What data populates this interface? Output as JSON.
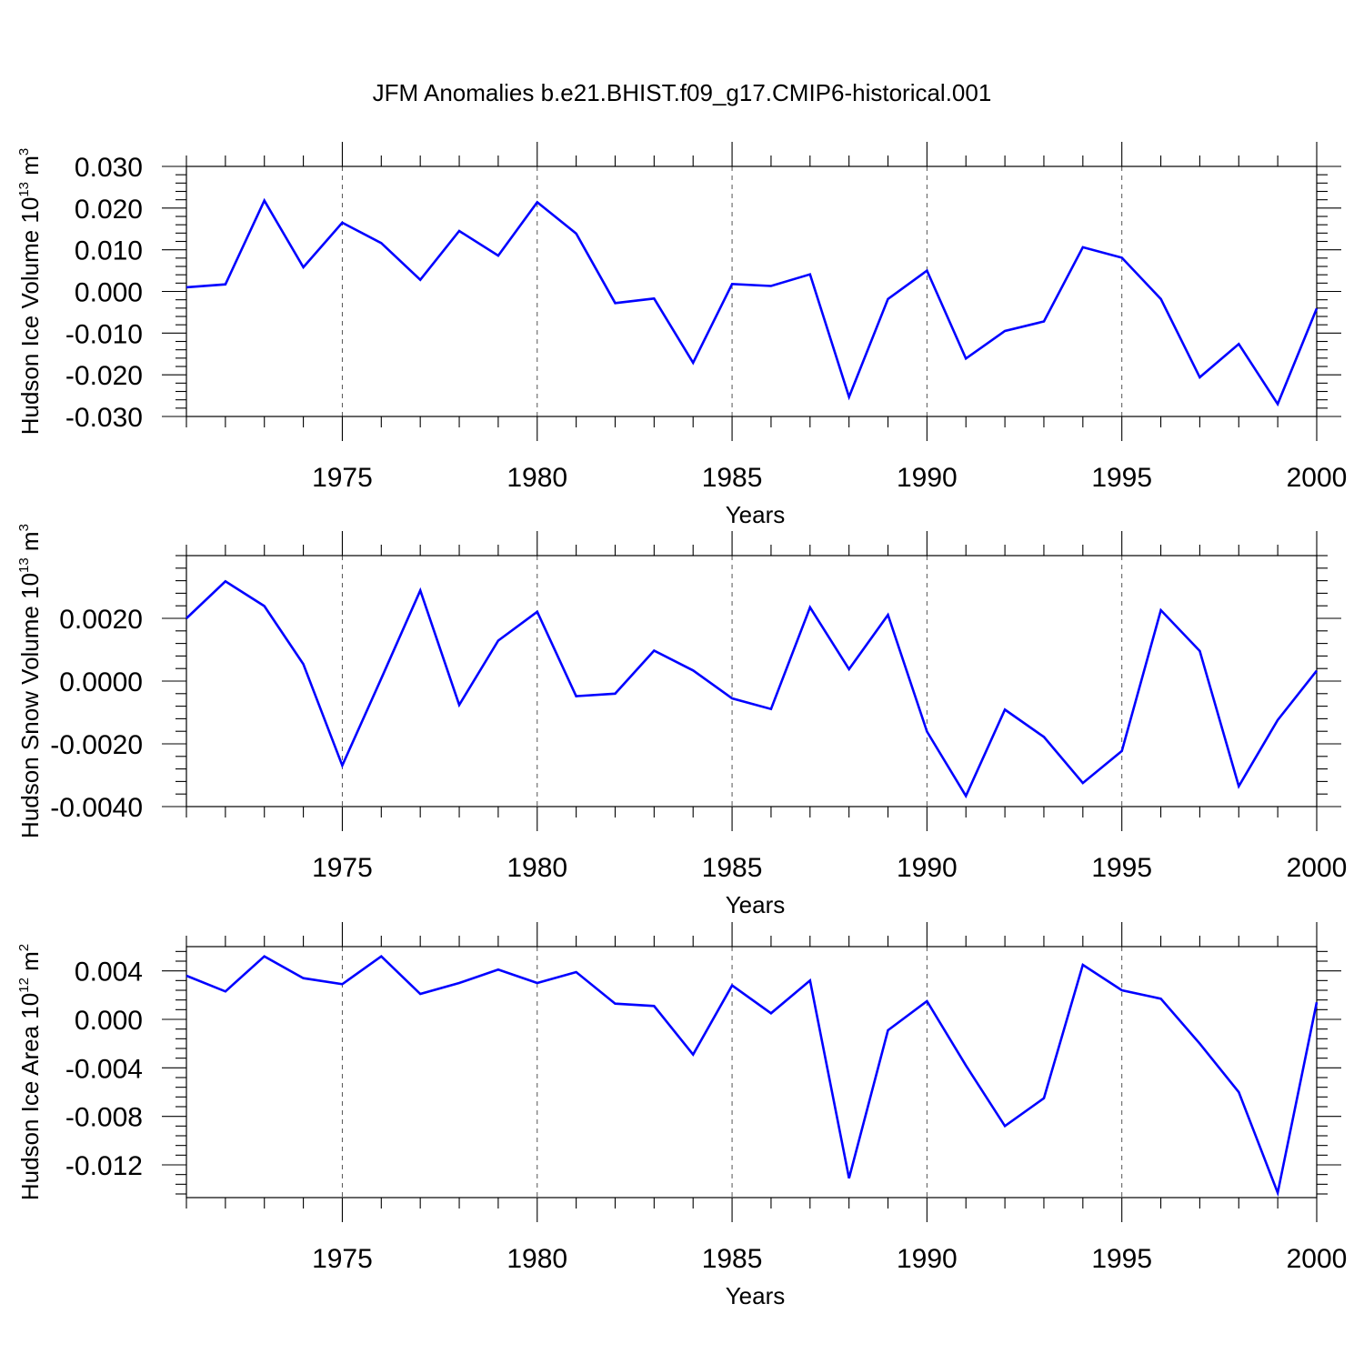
{
  "figure_title": "JFM Anomalies b.e21.BHIST.f09_g17.CMIP6-historical.001",
  "colors": {
    "series": "#0000ff",
    "axis": "#000000",
    "grid": "#555555"
  },
  "chart_data": [
    {
      "type": "line",
      "ylabel": {
        "text": "Hudson Ice Volume 10",
        "sup": "13",
        "unit": " m",
        "unit_sup": "3"
      },
      "xlabel": "Years",
      "xlim": [
        1971,
        2000
      ],
      "ylim": [
        -0.03,
        0.03
      ],
      "yticks": [
        -0.03,
        -0.02,
        -0.01,
        0.0,
        0.01,
        0.02,
        0.03
      ],
      "ytick_labels": [
        "-0.030",
        "-0.020",
        "-0.010",
        "0.000",
        "0.010",
        "0.020",
        "0.030"
      ],
      "yminor_step": 0.002,
      "xticks": [
        1975,
        1980,
        1985,
        1990,
        1995,
        2000
      ],
      "xtick_labels": [
        "1975",
        "1980",
        "1985",
        "1990",
        "1995",
        "2000"
      ],
      "x": [
        1971,
        1972,
        1973,
        1974,
        1975,
        1976,
        1977,
        1978,
        1979,
        1980,
        1981,
        1982,
        1983,
        1984,
        1985,
        1986,
        1987,
        1988,
        1989,
        1990,
        1991,
        1992,
        1993,
        1994,
        1995,
        1996,
        1997,
        1998,
        1999,
        2000
      ],
      "series": [
        {
          "values": [
            0.001,
            0.0017,
            0.0218,
            0.0058,
            0.0165,
            0.0116,
            0.0028,
            0.0145,
            0.0086,
            0.0214,
            0.0139,
            -0.0028,
            -0.0017,
            -0.0171,
            0.0018,
            0.0013,
            0.0041,
            -0.0253,
            -0.0018,
            0.005,
            -0.0161,
            -0.0095,
            -0.0072,
            0.0106,
            0.0081,
            -0.0018,
            -0.0206,
            -0.0126,
            -0.027,
            -0.0041
          ]
        }
      ]
    },
    {
      "type": "line",
      "ylabel": {
        "text": "Hudson Snow Volume 10",
        "sup": "13",
        "unit": " m",
        "unit_sup": "3"
      },
      "xlabel": "Years",
      "xlim": [
        1971,
        2000
      ],
      "ylim": [
        -0.004,
        0.004
      ],
      "yticks": [
        -0.004,
        -0.002,
        0.0,
        0.002
      ],
      "ytick_labels": [
        "-0.0040",
        "-0.0020",
        "0.0000",
        "0.0020"
      ],
      "yminor_step": 0.0004,
      "xticks": [
        1975,
        1980,
        1985,
        1990,
        1995,
        2000
      ],
      "xtick_labels": [
        "1975",
        "1980",
        "1985",
        "1990",
        "1995",
        "2000"
      ],
      "x": [
        1971,
        1972,
        1973,
        1974,
        1975,
        1976,
        1977,
        1978,
        1979,
        1980,
        1981,
        1982,
        1983,
        1984,
        1985,
        1986,
        1987,
        1988,
        1989,
        1990,
        1991,
        1992,
        1993,
        1994,
        1995,
        1996,
        1997,
        1998,
        1999,
        2000
      ],
      "series": [
        {
          "values": [
            0.002,
            0.00318,
            0.00239,
            0.00054,
            -0.00269,
            8e-05,
            0.00289,
            -0.00076,
            0.00129,
            0.00221,
            -0.00048,
            -0.0004,
            0.00097,
            0.00034,
            -0.00055,
            -0.00089,
            0.00235,
            0.00038,
            0.00211,
            -0.00161,
            -0.00366,
            -0.00091,
            -0.00178,
            -0.00325,
            -0.00223,
            0.00226,
            0.00096,
            -0.00335,
            -0.00124,
            0.00033
          ]
        }
      ]
    },
    {
      "type": "line",
      "ylabel": {
        "text": "Hudson Ice Area 10",
        "sup": "12",
        "unit": " m",
        "unit_sup": "2"
      },
      "xlabel": "Years",
      "xlim": [
        1971,
        2000
      ],
      "ylim": [
        -0.0147,
        0.006
      ],
      "yticks": [
        -0.012,
        -0.008,
        -0.004,
        0.0,
        0.004
      ],
      "ytick_labels": [
        "-0.012",
        "-0.008",
        "-0.004",
        "0.000",
        "0.004"
      ],
      "yminor_step": 0.0008,
      "xticks": [
        1975,
        1980,
        1985,
        1990,
        1995,
        2000
      ],
      "xtick_labels": [
        "1975",
        "1980",
        "1985",
        "1990",
        "1995",
        "2000"
      ],
      "x": [
        1971,
        1972,
        1973,
        1974,
        1975,
        1976,
        1977,
        1978,
        1979,
        1980,
        1981,
        1982,
        1983,
        1984,
        1985,
        1986,
        1987,
        1988,
        1989,
        1990,
        1991,
        1992,
        1993,
        1994,
        1995,
        1996,
        1997,
        1998,
        1999,
        2000
      ],
      "series": [
        {
          "values": [
            0.0036,
            0.0023,
            0.0052,
            0.0034,
            0.0029,
            0.0052,
            0.0021,
            0.003,
            0.0041,
            0.003,
            0.0039,
            0.0013,
            0.0011,
            -0.0029,
            0.0028,
            0.0005,
            0.0032,
            -0.0131,
            -0.0009,
            0.0015,
            -0.0038,
            -0.0088,
            -0.0065,
            0.0045,
            0.0024,
            0.0017,
            -0.002,
            -0.006,
            -0.0143,
            0.0014
          ]
        }
      ]
    }
  ]
}
